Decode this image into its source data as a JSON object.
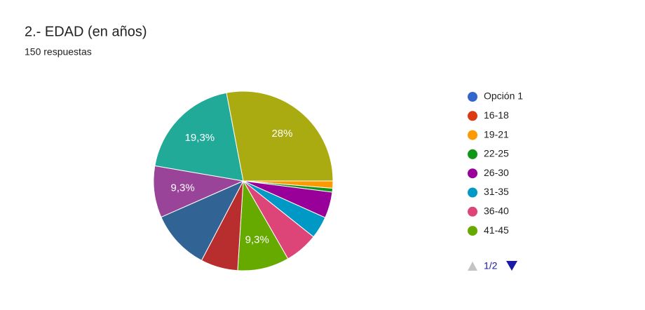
{
  "chart_data": {
    "type": "pie",
    "title": "2.- EDAD (en años)",
    "subtitle": "150 respuestas",
    "categories": [
      "Opción 1",
      "16-18",
      "19-21",
      "22-25",
      "26-30",
      "31-35",
      "36-40",
      "41-45",
      null,
      null,
      null,
      null,
      null
    ],
    "values": [
      0,
      0,
      1.3,
      0.7,
      4.7,
      4,
      6,
      9.3,
      6.7,
      10.7,
      9.3,
      19.3,
      28
    ],
    "value_labels": [
      null,
      null,
      null,
      null,
      null,
      null,
      null,
      "9,3%",
      null,
      null,
      "9,3%",
      "19,3%",
      "28%"
    ],
    "colors": [
      "#3366cc",
      "#dc3912",
      "#ff9900",
      "#109618",
      "#990099",
      "#0099c6",
      "#dd4477",
      "#66aa00",
      "#b82e2e",
      "#316395",
      "#994499",
      "#22aa99",
      "#aaaa11"
    ],
    "legend_page": "1/2"
  }
}
